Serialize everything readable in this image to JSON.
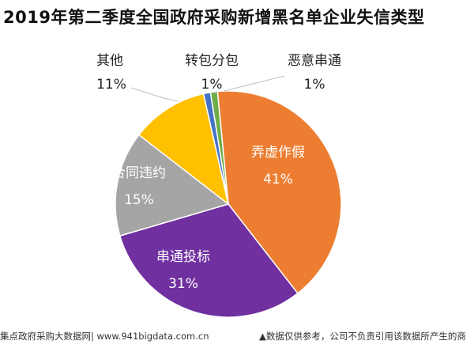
{
  "chart_data": {
    "type": "pie",
    "title": "2019年第二季度全国政府采购新增黑名单企业失信类型",
    "slices": [
      {
        "label": "弄虚作假",
        "value": 41,
        "value_text": "41%",
        "color": "#ED7D31"
      },
      {
        "label": "串通投标",
        "value": 31,
        "value_text": "31%",
        "color": "#7030A0"
      },
      {
        "label": "合同违约",
        "value": 15,
        "value_text": "15%",
        "color": "#A5A5A5"
      },
      {
        "label": "其他",
        "value": 11,
        "value_text": "11%",
        "color": "#FFC000"
      },
      {
        "label": "转包分包",
        "value": 1,
        "value_text": "1%",
        "color": "#4472C4"
      },
      {
        "label": "恶意串通",
        "value": 1,
        "value_text": "1%",
        "color": "#70AD47"
      }
    ],
    "legend": "none"
  },
  "footer": {
    "source": "集点政府采购大数据网| www.941bigdata.com.cn",
    "disclaimer": "▲数据仅供参考，公司不负责引用该数据所产生的商"
  }
}
